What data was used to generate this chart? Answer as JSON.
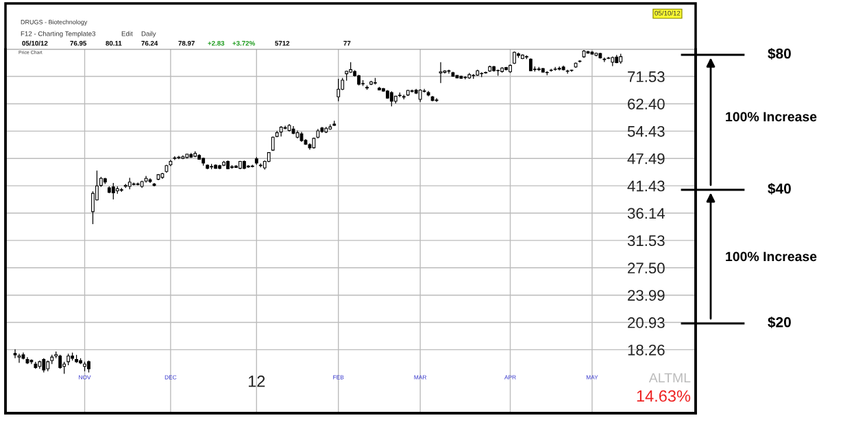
{
  "chart_data": {
    "type": "candlestick",
    "title": "DRUGS - Biotechnology",
    "categories": [
      null,
      null,
      null,
      null,
      null,
      null,
      null,
      null,
      null,
      null,
      null,
      null,
      null,
      null,
      null,
      null,
      null,
      "NOV",
      null,
      null,
      null,
      null,
      null,
      null,
      null,
      null,
      null,
      null,
      null,
      null,
      null,
      null,
      null,
      null,
      null,
      null,
      null,
      null,
      "DEC",
      null,
      null,
      null,
      null,
      null,
      null,
      null,
      null,
      null,
      null,
      null,
      null,
      null,
      null,
      null,
      null,
      null,
      null,
      null,
      null,
      "12",
      null,
      null,
      null,
      null,
      null,
      null,
      null,
      null,
      null,
      null,
      null,
      null,
      null,
      null,
      null,
      null,
      null,
      null,
      null,
      "FEB",
      null,
      null,
      null,
      null,
      null,
      null,
      null,
      null,
      null,
      null,
      null,
      null,
      null,
      null,
      null,
      null,
      null,
      null,
      null,
      "MAR",
      null,
      null,
      null,
      null,
      null,
      null,
      null,
      null,
      null,
      null,
      null,
      null,
      null,
      null,
      null,
      null,
      null,
      null,
      null,
      null,
      null,
      "APR",
      null,
      null,
      null,
      null,
      null,
      null,
      null,
      null,
      null,
      null,
      null,
      null,
      null,
      null,
      null,
      null,
      null,
      null,
      null,
      "MAY",
      null,
      null,
      null,
      null,
      null,
      null,
      null
    ],
    "ohlc": [
      [
        17.9,
        18.3,
        17.5,
        17.8
      ],
      [
        17.6,
        17.9,
        17.1,
        17.6
      ],
      [
        17.8,
        18.0,
        17.4,
        17.5
      ],
      [
        17.4,
        17.6,
        17.0,
        17.1
      ],
      [
        17.3,
        17.4,
        17.0,
        17.2
      ],
      [
        17.0,
        17.2,
        16.6,
        16.7
      ],
      [
        16.8,
        17.3,
        16.6,
        17.2
      ],
      [
        17.4,
        17.5,
        16.3,
        16.5
      ],
      [
        16.6,
        17.3,
        16.4,
        17.2
      ],
      [
        17.3,
        17.8,
        17.0,
        17.6
      ],
      [
        17.7,
        18.1,
        17.5,
        17.7
      ],
      [
        17.7,
        17.8,
        16.6,
        16.7
      ],
      [
        16.8,
        17.2,
        16.2,
        17.0
      ],
      [
        17.2,
        17.9,
        16.9,
        17.7
      ],
      [
        17.7,
        18.0,
        17.3,
        17.5
      ],
      [
        17.4,
        17.8,
        17.1,
        17.2
      ],
      [
        17.3,
        17.5,
        17.0,
        17.1
      ],
      [
        16.8,
        17.2,
        16.4,
        17.0
      ],
      [
        17.2,
        17.3,
        16.3,
        16.6
      ],
      [
        36.4,
        40.3,
        34.2,
        39.9
      ],
      [
        38.6,
        44.7,
        38.5,
        41.4
      ],
      [
        41.5,
        43.3,
        41.2,
        43.0
      ],
      [
        42.9,
        43.1,
        41.8,
        42.2
      ],
      [
        41.0,
        41.3,
        39.9,
        40.1
      ],
      [
        41.2,
        42.0,
        38.7,
        40.0
      ],
      [
        40.4,
        41.3,
        39.8,
        40.8
      ],
      [
        40.6,
        41.0,
        40.2,
        40.5
      ],
      [
        41.3,
        41.8,
        41.0,
        41.5
      ],
      [
        41.3,
        43.1,
        40.7,
        42.2
      ],
      [
        41.7,
        42.1,
        41.5,
        41.8
      ],
      [
        41.8,
        42.1,
        41.5,
        41.7
      ],
      [
        41.3,
        42.5,
        41.0,
        42.3
      ],
      [
        42.4,
        43.5,
        42.1,
        43.0
      ],
      [
        42.7,
        43.0,
        42.0,
        42.3
      ],
      [
        41.8,
        42.0,
        41.3,
        41.5
      ],
      [
        42.8,
        43.9,
        42.6,
        43.8
      ],
      [
        43.2,
        44.2,
        42.9,
        44.0
      ],
      [
        44.5,
        46.0,
        44.2,
        45.8
      ],
      [
        46.0,
        47.1,
        45.7,
        46.8
      ],
      [
        47.5,
        48.0,
        47.1,
        47.6
      ],
      [
        47.6,
        48.1,
        47.3,
        47.8
      ],
      [
        47.5,
        48.2,
        47.3,
        47.9
      ],
      [
        47.7,
        48.6,
        47.5,
        48.5
      ],
      [
        48.4,
        48.8,
        47.6,
        47.8
      ],
      [
        48.0,
        49.2,
        47.8,
        48.7
      ],
      [
        48.2,
        48.5,
        47.2,
        47.3
      ],
      [
        47.5,
        47.7,
        45.8,
        46.4
      ],
      [
        45.9,
        46.1,
        45.0,
        45.2
      ],
      [
        45.6,
        46.2,
        45.0,
        45.5
      ],
      [
        45.9,
        46.1,
        45.1,
        45.2
      ],
      [
        45.8,
        46.0,
        45.0,
        45.2
      ],
      [
        45.9,
        46.9,
        45.7,
        46.6
      ],
      [
        46.8,
        47.0,
        45.0,
        45.1
      ],
      [
        45.4,
        45.9,
        45.1,
        45.6
      ],
      [
        45.7,
        45.9,
        45.3,
        45.4
      ],
      [
        45.2,
        46.9,
        45.0,
        46.8
      ],
      [
        46.8,
        47.0,
        45.0,
        45.2
      ],
      [
        45.5,
        45.9,
        45.3,
        45.7
      ],
      [
        45.7,
        46.0,
        45.4,
        45.6
      ],
      [
        47.4,
        47.8,
        46.0,
        46.4
      ],
      [
        45.8,
        46.3,
        45.4,
        45.9
      ],
      [
        45.3,
        47.0,
        44.9,
        46.8
      ],
      [
        46.8,
        49.0,
        46.6,
        48.9
      ],
      [
        49.5,
        53.0,
        49.3,
        52.8
      ],
      [
        53.0,
        54.5,
        52.8,
        54.0
      ],
      [
        54.2,
        55.8,
        53.0,
        55.5
      ],
      [
        55.2,
        55.9,
        54.9,
        55.4
      ],
      [
        54.6,
        56.4,
        54.3,
        56.0
      ],
      [
        55.0,
        55.8,
        53.6,
        53.8
      ],
      [
        52.8,
        54.6,
        52.5,
        54.0
      ],
      [
        53.7,
        54.2,
        51.6,
        51.9
      ],
      [
        52.0,
        52.3,
        50.8,
        51.0
      ],
      [
        50.9,
        51.2,
        49.6,
        50.1
      ],
      [
        50.1,
        52.7,
        49.9,
        52.5
      ],
      [
        52.8,
        55.0,
        52.5,
        54.5
      ],
      [
        55.3,
        55.6,
        54.0,
        54.3
      ],
      [
        54.2,
        55.6,
        53.9,
        55.2
      ],
      [
        55.0,
        56.3,
        54.8,
        55.6
      ],
      [
        56.4,
        57.3,
        55.9,
        56.0
      ],
      [
        64.6,
        70.7,
        63.2,
        67.1
      ],
      [
        67.1,
        71.0,
        66.8,
        70.2
      ],
      [
        72.5,
        73.6,
        70.0,
        73.4
      ],
      [
        73.1,
        76.8,
        72.8,
        74.0
      ],
      [
        73.3,
        73.8,
        71.5,
        71.8
      ],
      [
        71.8,
        72.1,
        68.4,
        68.8
      ],
      [
        69.0,
        70.2,
        68.2,
        68.9
      ],
      [
        67.8,
        68.4,
        66.9,
        67.5
      ],
      [
        68.8,
        70.0,
        68.5,
        69.6
      ],
      [
        69.3,
        71.0,
        68.7,
        69.2
      ],
      [
        67.5,
        67.9,
        66.8,
        66.9
      ],
      [
        67.3,
        67.5,
        66.3,
        66.5
      ],
      [
        66.5,
        66.8,
        64.0,
        64.2
      ],
      [
        66.0,
        66.4,
        61.6,
        63.2
      ],
      [
        63.2,
        64.9,
        62.5,
        64.8
      ],
      [
        65.0,
        66.0,
        64.5,
        65.0
      ],
      [
        64.5,
        65.3,
        63.8,
        64.7
      ],
      [
        65.2,
        66.9,
        64.9,
        66.7
      ],
      [
        66.4,
        67.0,
        66.0,
        66.6
      ],
      [
        66.8,
        67.2,
        65.5,
        65.8
      ],
      [
        63.8,
        67.1,
        63.0,
        66.8
      ],
      [
        66.5,
        67.2,
        66.0,
        66.4
      ],
      [
        66.0,
        66.5,
        64.8,
        65.2
      ],
      [
        64.6,
        64.9,
        63.2,
        63.4
      ],
      [
        63.6,
        64.2,
        63.0,
        63.4
      ],
      [
        72.8,
        76.8,
        69.2,
        73.2
      ],
      [
        73.0,
        73.8,
        72.6,
        73.5
      ],
      [
        73.6,
        74.0,
        72.5,
        73.4
      ],
      [
        72.9,
        73.2,
        71.4,
        71.6
      ],
      [
        71.9,
        72.0,
        70.9,
        71.0
      ],
      [
        71.6,
        71.8,
        70.7,
        70.9
      ],
      [
        71.2,
        71.6,
        70.5,
        71.1
      ],
      [
        71.0,
        72.8,
        70.7,
        72.2
      ],
      [
        71.9,
        72.4,
        70.7,
        71.8
      ],
      [
        72.0,
        74.0,
        71.8,
        73.6
      ],
      [
        72.5,
        73.0,
        71.3,
        72.6
      ],
      [
        72.8,
        73.3,
        72.5,
        73.0
      ],
      [
        73.5,
        75.5,
        73.2,
        75.1
      ],
      [
        75.1,
        75.4,
        73.3,
        73.6
      ],
      [
        73.6,
        74.0,
        71.8,
        73.7
      ],
      [
        73.3,
        74.9,
        72.9,
        74.6
      ],
      [
        74.8,
        75.0,
        73.8,
        74.0
      ],
      [
        73.2,
        75.9,
        72.8,
        75.6
      ],
      [
        76.4,
        81.0,
        76.1,
        80.7
      ],
      [
        80.1,
        80.6,
        78.5,
        79.4
      ],
      [
        78.2,
        79.8,
        78.0,
        79.6
      ],
      [
        78.8,
        79.5,
        78.0,
        79.0
      ],
      [
        78.0,
        78.3,
        73.4,
        73.6
      ],
      [
        74.2,
        75.2,
        73.3,
        74.0
      ],
      [
        74.0,
        75.0,
        73.5,
        74.3
      ],
      [
        74.4,
        74.6,
        73.0,
        73.1
      ],
      [
        72.9,
        73.4,
        72.0,
        73.0
      ],
      [
        73.7,
        74.3,
        73.3,
        73.8
      ],
      [
        74.1,
        75.0,
        73.6,
        74.2
      ],
      [
        74.2,
        75.2,
        73.7,
        74.5
      ],
      [
        75.0,
        75.5,
        73.7,
        74.0
      ],
      [
        73.5,
        74.0,
        72.5,
        73.4
      ],
      [
        73.7,
        74.0,
        73.2,
        73.8
      ],
      [
        75.0,
        76.7,
        74.7,
        76.4
      ],
      [
        77.1,
        77.6,
        76.7,
        77.2
      ],
      [
        78.9,
        81.6,
        78.5,
        81.2
      ],
      [
        81.0,
        81.3,
        80.1,
        80.4
      ],
      [
        80.8,
        81.1,
        79.8,
        80.0
      ],
      [
        79.5,
        80.6,
        79.1,
        80.3
      ],
      [
        80.2,
        80.5,
        78.2,
        78.5
      ],
      [
        78.0,
        78.6,
        76.9,
        77.8
      ],
      [
        78.3,
        78.9,
        78.0,
        78.4
      ],
      [
        76.8,
        79.0,
        75.3,
        78.6
      ],
      [
        78.8,
        79.6,
        76.4,
        76.6
      ],
      [
        76.95,
        80.11,
        76.24,
        78.97
      ]
    ],
    "log": true,
    "ylim": [
      13.3,
      81.9
    ],
    "yticks": [
      71.53,
      {
        "value": 62.4,
        "label": "62.40"
      },
      54.43,
      47.49,
      41.43,
      36.14,
      31.53,
      {
        "value": 27.5,
        "label": "27.50"
      },
      23.99,
      20.93,
      18.26
    ],
    "grid": true,
    "annotations": [
      "F12 - Charting Template3",
      "Edit",
      "Daily",
      "05/10/12",
      "76.95",
      "80.11",
      "76.24",
      "78.97",
      "+2.83",
      "+3.72%",
      "5712",
      "77",
      "Price Chart",
      "05/10/12",
      "ALTML",
      "14.63%",
      "100% Increase",
      "100% Increase",
      "$80",
      "$40",
      "$20"
    ]
  }
}
